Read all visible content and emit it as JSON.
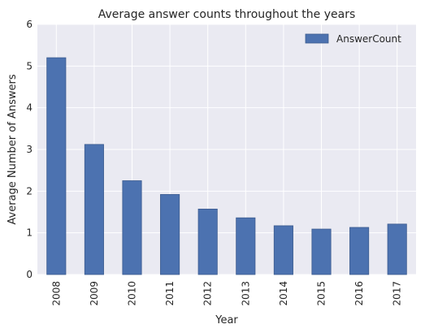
{
  "chart_data": {
    "type": "bar",
    "title": "Average answer counts throughout the years",
    "xlabel": "Year",
    "ylabel": "Average Number of Answers",
    "categories": [
      "2008",
      "2009",
      "2010",
      "2011",
      "2012",
      "2013",
      "2014",
      "2015",
      "2016",
      "2017"
    ],
    "series": [
      {
        "name": "AnswerCount",
        "values": [
          5.2,
          3.12,
          2.25,
          1.92,
          1.57,
          1.36,
          1.17,
          1.09,
          1.13,
          1.21
        ]
      }
    ],
    "ylim": [
      0,
      6
    ],
    "yticks": [
      "0",
      "1",
      "2",
      "3",
      "4",
      "5",
      "6"
    ],
    "grid": true,
    "legend_position": "top-right",
    "colors": {
      "bar": "#4c72b0",
      "background": "#eaeaf2",
      "grid": "#ffffff"
    }
  }
}
